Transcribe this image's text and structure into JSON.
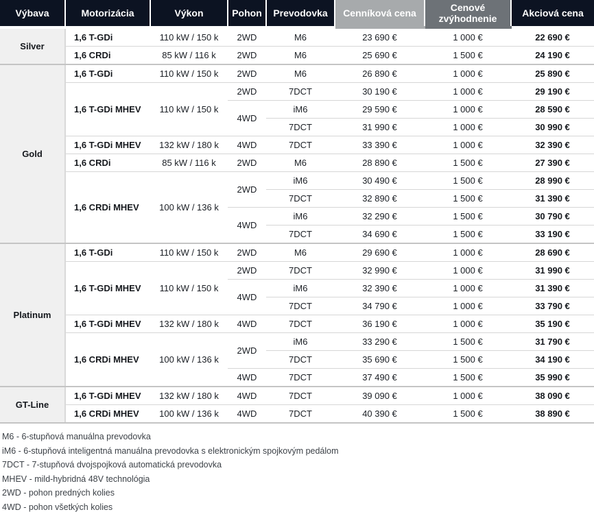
{
  "colors": {
    "header_dark": "#0c1322",
    "header_light_gray": "#a7aaac",
    "header_mid_gray": "#6d7277",
    "trim_column_bg": "#f0f0f0",
    "row_border": "#d6d6d6",
    "section_border": "#c4c4c4"
  },
  "table": {
    "headers": [
      {
        "label": "Výbava"
      },
      {
        "label": "Motorizácia"
      },
      {
        "label": "Výkon"
      },
      {
        "label": "Pohon"
      },
      {
        "label": "Prevodovka"
      },
      {
        "label": "Cenníková cena"
      },
      {
        "label": "Cenové zvýhodnenie"
      },
      {
        "label": "Akciová cena"
      }
    ],
    "rows": [
      {
        "trim": {
          "text": "Silver",
          "span": 2
        },
        "engine": {
          "text": "1,6 T-GDi"
        },
        "power": {
          "text": "110 kW / 150 k"
        },
        "drive": {
          "text": "2WD"
        },
        "trans": "M6",
        "list": "23 690 €",
        "discount": "1 000 €",
        "promo": "22 690 €"
      },
      {
        "engine": {
          "text": "1,6 CRDi"
        },
        "power": {
          "text": "85 kW / 116 k"
        },
        "drive": {
          "text": "2WD"
        },
        "trans": "M6",
        "list": "25 690 €",
        "discount": "1 500 €",
        "promo": "24 190 €",
        "section_end": true
      },
      {
        "trim": {
          "text": "Gold",
          "span": 10
        },
        "engine": {
          "text": "1,6 T-GDi"
        },
        "power": {
          "text": "110 kW / 150 k"
        },
        "drive": {
          "text": "2WD"
        },
        "trans": "M6",
        "list": "26 890 €",
        "discount": "1 000 €",
        "promo": "25 890 €"
      },
      {
        "engine": {
          "text": "1,6 T-GDi MHEV",
          "span": 3
        },
        "power": {
          "text": "110 kW / 150 k",
          "span": 3
        },
        "drive": {
          "text": "2WD"
        },
        "trans": "7DCT",
        "list": "30 190 €",
        "discount": "1 000 €",
        "promo": "29 190 €"
      },
      {
        "drive": {
          "text": "4WD",
          "span": 2
        },
        "trans": "iM6",
        "list": "29 590 €",
        "discount": "1 000 €",
        "promo": "28 590 €"
      },
      {
        "trans": "7DCT",
        "list": "31 990 €",
        "discount": "1 000 €",
        "promo": "30 990 €"
      },
      {
        "engine": {
          "text": "1,6 T-GDi MHEV"
        },
        "power": {
          "text": "132 kW / 180 k"
        },
        "drive": {
          "text": "4WD"
        },
        "trans": "7DCT",
        "list": "33 390 €",
        "discount": "1 000 €",
        "promo": "32 390 €"
      },
      {
        "engine": {
          "text": "1,6 CRDi"
        },
        "power": {
          "text": "85 kW / 116 k"
        },
        "drive": {
          "text": "2WD"
        },
        "trans": "M6",
        "list": "28 890 €",
        "discount": "1 500 €",
        "promo": "27 390 €"
      },
      {
        "engine": {
          "text": "1,6 CRDi MHEV",
          "span": 4
        },
        "power": {
          "text": "100 kW / 136 k",
          "span": 4
        },
        "drive": {
          "text": "2WD",
          "span": 2
        },
        "trans": "iM6",
        "list": "30 490 €",
        "discount": "1 500 €",
        "promo": "28 990 €"
      },
      {
        "trans": "7DCT",
        "list": "32 890 €",
        "discount": "1 500 €",
        "promo": "31 390 €"
      },
      {
        "drive": {
          "text": "4WD",
          "span": 2
        },
        "trans": "iM6",
        "list": "32 290 €",
        "discount": "1 500 €",
        "promo": "30 790 €"
      },
      {
        "trans": "7DCT",
        "list": "34 690 €",
        "discount": "1 500 €",
        "promo": "33 190 €",
        "section_end": true
      },
      {
        "trim": {
          "text": "Platinum",
          "span": 8
        },
        "engine": {
          "text": "1,6 T-GDi"
        },
        "power": {
          "text": "110 kW / 150 k"
        },
        "drive": {
          "text": "2WD"
        },
        "trans": "M6",
        "list": "29 690 €",
        "discount": "1 000 €",
        "promo": "28 690 €"
      },
      {
        "engine": {
          "text": "1,6 T-GDi MHEV",
          "span": 3
        },
        "power": {
          "text": "110 kW / 150 k",
          "span": 3
        },
        "drive": {
          "text": "2WD"
        },
        "trans": "7DCT",
        "list": "32 990 €",
        "discount": "1 000 €",
        "promo": "31 990 €"
      },
      {
        "drive": {
          "text": "4WD",
          "span": 2
        },
        "trans": "iM6",
        "list": "32 390 €",
        "discount": "1 000 €",
        "promo": "31 390 €"
      },
      {
        "trans": "7DCT",
        "list": "34 790 €",
        "discount": "1 000 €",
        "promo": "33 790 €"
      },
      {
        "engine": {
          "text": "1,6 T-GDi MHEV"
        },
        "power": {
          "text": "132 kW / 180 k"
        },
        "drive": {
          "text": "4WD"
        },
        "trans": "7DCT",
        "list": "36 190 €",
        "discount": "1 000 €",
        "promo": "35 190 €"
      },
      {
        "engine": {
          "text": "1,6 CRDi MHEV",
          "span": 3
        },
        "power": {
          "text": "100 kW / 136 k",
          "span": 3
        },
        "drive": {
          "text": "2WD",
          "span": 2
        },
        "trans": "iM6",
        "list": "33 290 €",
        "discount": "1 500 €",
        "promo": "31 790 €"
      },
      {
        "trans": "7DCT",
        "list": "35 690 €",
        "discount": "1 500 €",
        "promo": "34 190 €"
      },
      {
        "drive": {
          "text": "4WD"
        },
        "trans": "7DCT",
        "list": "37 490 €",
        "discount": "1 500 €",
        "promo": "35 990 €",
        "section_end": true
      },
      {
        "trim": {
          "text": "GT-Line",
          "span": 2
        },
        "engine": {
          "text": "1,6 T-GDi MHEV"
        },
        "power": {
          "text": "132 kW / 180 k"
        },
        "drive": {
          "text": "4WD"
        },
        "trans": "7DCT",
        "list": "39 090 €",
        "discount": "1 000 €",
        "promo": "38 090 €"
      },
      {
        "engine": {
          "text": "1,6 CRDi MHEV"
        },
        "power": {
          "text": "100 kW / 136 k"
        },
        "drive": {
          "text": "4WD"
        },
        "trans": "7DCT",
        "list": "40 390 €",
        "discount": "1 500 €",
        "promo": "38 890 €",
        "section_end": true
      }
    ]
  },
  "footnotes": [
    "M6 - 6-stupňová manuálna prevodovka",
    "iM6 - 6-stupňová inteligentná manuálna prevodovka s elektronickým spojkovým pedálom",
    "7DCT - 7-stupňová dvojspojková automatická prevodovka",
    "MHEV - mild-hybridná 48V technológia",
    "2WD - pohon predných kolies",
    "4WD - pohon všetkých kolies"
  ]
}
